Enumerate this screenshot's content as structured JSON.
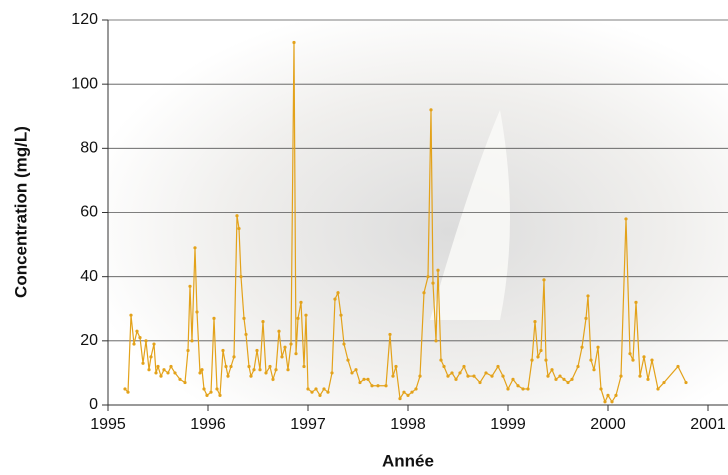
{
  "chart_data": {
    "type": "line",
    "x_label": "Année",
    "y_label": "Concentration (mg/L)",
    "color": "#e3a21a",
    "grid": true,
    "xlim": [
      1995,
      2001.2
    ],
    "xticks": [
      1995,
      1996,
      1997,
      1998,
      1999,
      2000,
      2001
    ],
    "ylim": [
      0,
      120
    ],
    "yticks": [
      0,
      20,
      40,
      60,
      80,
      100,
      120
    ],
    "x": [
      1995.17,
      1995.2,
      1995.23,
      1995.26,
      1995.29,
      1995.32,
      1995.35,
      1995.38,
      1995.41,
      1995.43,
      1995.46,
      1995.48,
      1995.5,
      1995.53,
      1995.56,
      1995.6,
      1995.63,
      1995.67,
      1995.72,
      1995.77,
      1995.8,
      1995.82,
      1995.84,
      1995.87,
      1995.89,
      1995.92,
      1995.94,
      1995.96,
      1995.99,
      1996.03,
      1996.06,
      1996.09,
      1996.12,
      1996.15,
      1996.18,
      1996.2,
      1996.23,
      1996.26,
      1996.29,
      1996.31,
      1996.33,
      1996.36,
      1996.38,
      1996.41,
      1996.43,
      1996.46,
      1996.49,
      1996.52,
      1996.55,
      1996.58,
      1996.62,
      1996.65,
      1996.68,
      1996.71,
      1996.74,
      1996.77,
      1996.8,
      1996.83,
      1996.86,
      1996.88,
      1996.9,
      1996.93,
      1996.96,
      1996.98,
      1997.0,
      1997.04,
      1997.08,
      1997.12,
      1997.16,
      1997.2,
      1997.24,
      1997.27,
      1997.3,
      1997.33,
      1997.36,
      1997.4,
      1997.44,
      1997.48,
      1997.52,
      1997.56,
      1997.6,
      1997.64,
      1997.7,
      1997.78,
      1997.82,
      1997.85,
      1997.88,
      1997.92,
      1997.96,
      1998.0,
      1998.04,
      1998.08,
      1998.12,
      1998.16,
      1998.2,
      1998.23,
      1998.25,
      1998.28,
      1998.3,
      1998.33,
      1998.36,
      1998.4,
      1998.44,
      1998.48,
      1998.52,
      1998.56,
      1998.6,
      1998.66,
      1998.72,
      1998.78,
      1998.84,
      1998.9,
      1998.95,
      1999.0,
      1999.05,
      1999.1,
      1999.15,
      1999.2,
      1999.24,
      1999.27,
      1999.3,
      1999.33,
      1999.36,
      1999.38,
      1999.4,
      1999.44,
      1999.48,
      1999.52,
      1999.56,
      1999.6,
      1999.64,
      1999.7,
      1999.74,
      1999.78,
      1999.8,
      1999.83,
      1999.86,
      1999.9,
      1999.93,
      1999.97,
      2000.0,
      2000.04,
      2000.08,
      2000.13,
      2000.18,
      2000.22,
      2000.25,
      2000.28,
      2000.32,
      2000.36,
      2000.4,
      2000.44,
      2000.5,
      2000.56,
      2000.7,
      2000.78
    ],
    "values": [
      5,
      4,
      28,
      19,
      23,
      21,
      13,
      20,
      11,
      15,
      19,
      10,
      12,
      9,
      11,
      10,
      12,
      10,
      8,
      7,
      17,
      37,
      20,
      49,
      29,
      10,
      11,
      5,
      3,
      4,
      27,
      5,
      3,
      17,
      12,
      9,
      12,
      15,
      59,
      55,
      40,
      27,
      22,
      12,
      9,
      11,
      17,
      11,
      26,
      10,
      12,
      8,
      11,
      23,
      15,
      18,
      11,
      19,
      113,
      16,
      27,
      32,
      12,
      28,
      5,
      4,
      5,
      3,
      5,
      4,
      10,
      33,
      35,
      28,
      19,
      14,
      10,
      11,
      7,
      8,
      8,
      6,
      6,
      6,
      22,
      9,
      12,
      2,
      4,
      3,
      4,
      5,
      9,
      35,
      40,
      92,
      38,
      20,
      42,
      14,
      12,
      9,
      10,
      8,
      10,
      12,
      9,
      9,
      7,
      10,
      9,
      12,
      9,
      5,
      8,
      6,
      5,
      5,
      14,
      26,
      15,
      17,
      39,
      14,
      9,
      11,
      8,
      9,
      8,
      7,
      8,
      12,
      18,
      27,
      34,
      14,
      11,
      18,
      5,
      1,
      3,
      1,
      3,
      9,
      58,
      16,
      14,
      32,
      9,
      15,
      8,
      14,
      5,
      7,
      12,
      7
    ]
  }
}
